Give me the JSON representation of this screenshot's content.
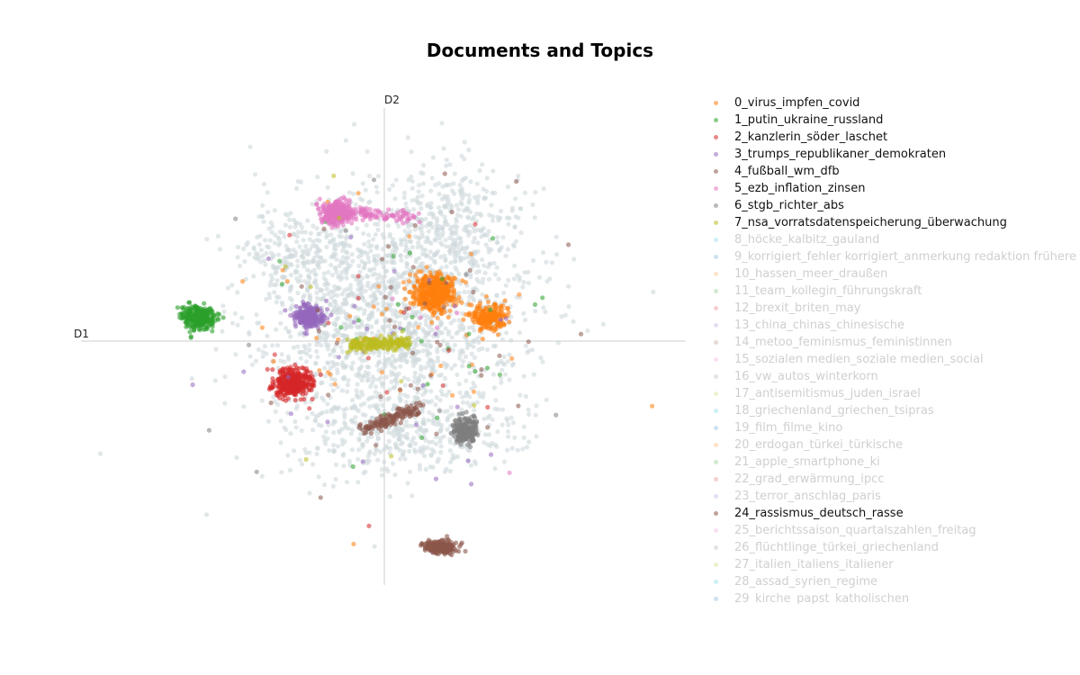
{
  "chart_data": {
    "type": "scatter",
    "title": "Documents and Topics",
    "xlabel": "D1",
    "ylabel": "D2",
    "grid": false,
    "legend_placement": "right",
    "xlim": [
      -6.74,
      6.66
    ],
    "ylim": [
      -5.42,
      5.18
    ],
    "background_color": "#cfd8dc",
    "background_clusters": [
      {
        "cx": 0.1,
        "cy": 0.6,
        "sx": 2.0,
        "sy": 1.7,
        "n": 1500
      },
      {
        "cx": 1.6,
        "cy": 2.6,
        "sx": 1.0,
        "sy": 0.9,
        "n": 300
      },
      {
        "cx": -1.8,
        "cy": 1.9,
        "sx": 0.9,
        "sy": 0.6,
        "n": 200
      },
      {
        "cx": 0.2,
        "cy": -2.0,
        "sx": 1.7,
        "sy": 0.7,
        "n": 400
      }
    ],
    "series": [
      {
        "name": "0_virus_impfen_covid",
        "color": "#ff7f0e",
        "visible": true,
        "clusters": [
          {
            "cx": 1.06,
            "cy": 1.05,
            "sx": 0.4,
            "sy": 0.35,
            "n": 400
          },
          {
            "cx": 2.3,
            "cy": 0.55,
            "sx": 0.3,
            "sy": 0.25,
            "n": 200
          }
        ],
        "scatter": 40
      },
      {
        "name": "1_putin_ukraine_russland",
        "color": "#2ca02c",
        "visible": true,
        "clusters": [
          {
            "cx": -4.14,
            "cy": 0.54,
            "sx": 0.32,
            "sy": 0.22,
            "n": 300
          }
        ],
        "scatter": 30
      },
      {
        "name": "2_kanzlerin_söder_laschet",
        "color": "#d62728",
        "visible": true,
        "clusters": [
          {
            "cx": -2.05,
            "cy": -0.92,
            "sx": 0.35,
            "sy": 0.25,
            "n": 350
          }
        ],
        "scatter": 15
      },
      {
        "name": "3_trumps_republikaner_demokraten",
        "color": "#9467bd",
        "visible": true,
        "clusters": [
          {
            "cx": -1.68,
            "cy": 0.54,
            "sx": 0.28,
            "sy": 0.2,
            "n": 220
          }
        ],
        "scatter": 30
      },
      {
        "name": "4_fußball_wm_dfb",
        "color": "#8c564b",
        "visible": true,
        "clusters": [
          {
            "cx": 1.22,
            "cy": -4.58,
            "sx": 0.3,
            "sy": 0.13,
            "n": 220
          }
        ],
        "band": {
          "x0": -0.45,
          "y0": -1.95,
          "x1": 0.75,
          "y1": -1.5,
          "n": 150
        },
        "scatter": 20
      },
      {
        "name": "5_ezb_inflation_zinsen",
        "color": "#e377c2",
        "visible": true,
        "clusters": [
          {
            "cx": -1.05,
            "cy": 2.85,
            "sx": 0.3,
            "sy": 0.2,
            "n": 300
          }
        ],
        "band": {
          "x0": -0.6,
          "y0": 2.85,
          "x1": 0.7,
          "y1": 2.75,
          "n": 80
        },
        "scatter": 5
      },
      {
        "name": "6_stgb_richter_abs",
        "color": "#7f7f7f",
        "visible": true,
        "clusters": [
          {
            "cx": 1.76,
            "cy": -1.98,
            "sx": 0.2,
            "sy": 0.22,
            "n": 250
          }
        ],
        "scatter": 10
      },
      {
        "name": "7_nsa_vorratsdatenspeicherung_überwachung",
        "color": "#bcbd22",
        "visible": true,
        "clusters": [],
        "band": {
          "x0": -0.8,
          "y0": -0.1,
          "x1": 0.5,
          "y1": -0.02,
          "n": 200
        },
        "scatter": 10
      },
      {
        "name": "8_höcke_kalbitz_gauland",
        "color": "#17becf",
        "visible": false
      },
      {
        "name": "9_korrigiert_fehler korrigiert_anmerkung redaktion frühere",
        "color": "#1f77b4",
        "visible": false
      },
      {
        "name": "10_hassen_meer_draußen",
        "color": "#ff7f0e",
        "visible": false
      },
      {
        "name": "11_team_kollegin_führungskraft",
        "color": "#2ca02c",
        "visible": false
      },
      {
        "name": "12_brexit_briten_may",
        "color": "#d62728",
        "visible": false
      },
      {
        "name": "13_china_chinas_chinesische",
        "color": "#9467bd",
        "visible": false
      },
      {
        "name": "14_metoo_feminismus_feministinnen",
        "color": "#8c564b",
        "visible": false
      },
      {
        "name": "15_sozialen medien_soziale medien_social",
        "color": "#e377c2",
        "visible": false
      },
      {
        "name": "16_vw_autos_winterkorn",
        "color": "#7f7f7f",
        "visible": false
      },
      {
        "name": "17_antisemitismus_juden_israel",
        "color": "#bcbd22",
        "visible": false
      },
      {
        "name": "18_griechenland_griechen_tsipras",
        "color": "#17becf",
        "visible": false
      },
      {
        "name": "19_film_filme_kino",
        "color": "#1f77b4",
        "visible": false
      },
      {
        "name": "20_erdogan_türkei_türkische",
        "color": "#ff7f0e",
        "visible": false
      },
      {
        "name": "21_apple_smartphone_ki",
        "color": "#2ca02c",
        "visible": false
      },
      {
        "name": "22_grad_erwärmung_ipcc",
        "color": "#d62728",
        "visible": false
      },
      {
        "name": "23_terror_anschlag_paris",
        "color": "#9467bd",
        "visible": false
      },
      {
        "name": "24_rassismus_deutsch_rasse",
        "color": "#8c564b",
        "visible": true,
        "clusters": [],
        "scatter": 25
      },
      {
        "name": "25_berichtssaison_quartalszahlen_freitag",
        "color": "#e377c2",
        "visible": false
      },
      {
        "name": "26_flüchtlinge_türkei_griechenland",
        "color": "#7f7f7f",
        "visible": false
      },
      {
        "name": "27_italien_italiens_italiener",
        "color": "#bcbd22",
        "visible": false
      },
      {
        "name": "28_assad_syrien_regime",
        "color": "#17becf",
        "visible": false
      },
      {
        "name": "29_kirche_papst_katholischen",
        "color": "#1f77b4",
        "visible": false
      }
    ]
  }
}
